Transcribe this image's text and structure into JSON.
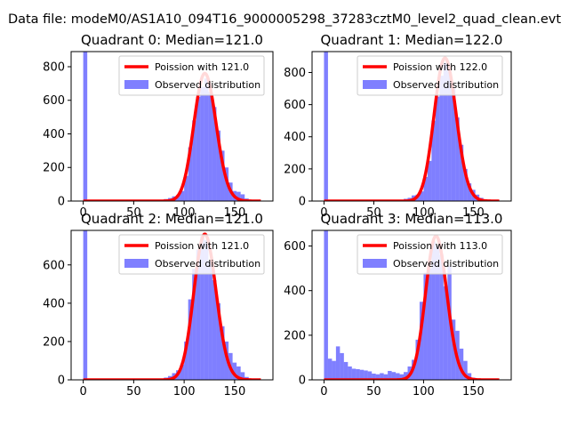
{
  "figure": {
    "suptitle": "Data file: modeM0/AS1A10_094T16_9000005298_37283cztM0_level2_quad_clean.evt",
    "colors": {
      "hist": "#0000ff",
      "hist_alpha": 0.5,
      "poisson": "#ff0000",
      "frame": "#000000"
    }
  },
  "chart_data": [
    {
      "type": "bar",
      "title": "Quadrant 0: Median=121.0",
      "median": 121.0,
      "xlim": [
        -12,
        188
      ],
      "ylim": [
        0,
        890
      ],
      "xticks": [
        0,
        50,
        100,
        150
      ],
      "yticks": [
        0,
        200,
        400,
        600,
        800
      ],
      "legend": {
        "placement": "upper-right",
        "entries": [
          "Poission with 121.0",
          "Observed distribution"
        ]
      },
      "poisson_label": "Poission with 121.0",
      "hist_label": "Observed distribution",
      "bin_width": 4,
      "hist": [
        {
          "x": 0,
          "count": 890
        },
        {
          "x": 4,
          "count": 3
        },
        {
          "x": 8,
          "count": 2
        },
        {
          "x": 76,
          "count": 5
        },
        {
          "x": 80,
          "count": 12
        },
        {
          "x": 84,
          "count": 18
        },
        {
          "x": 88,
          "count": 28
        },
        {
          "x": 92,
          "count": 35
        },
        {
          "x": 96,
          "count": 60
        },
        {
          "x": 100,
          "count": 150
        },
        {
          "x": 104,
          "count": 320
        },
        {
          "x": 108,
          "count": 480
        },
        {
          "x": 112,
          "count": 620
        },
        {
          "x": 116,
          "count": 680
        },
        {
          "x": 120,
          "count": 730
        },
        {
          "x": 124,
          "count": 650
        },
        {
          "x": 128,
          "count": 560
        },
        {
          "x": 132,
          "count": 420
        },
        {
          "x": 136,
          "count": 300
        },
        {
          "x": 140,
          "count": 200
        },
        {
          "x": 144,
          "count": 110
        },
        {
          "x": 148,
          "count": 60
        },
        {
          "x": 152,
          "count": 55
        },
        {
          "x": 156,
          "count": 40
        },
        {
          "x": 160,
          "count": 15
        },
        {
          "x": 164,
          "count": 6
        }
      ],
      "poisson_peak": 760,
      "poisson_range": [
        0,
        176
      ]
    },
    {
      "type": "bar",
      "title": "Quadrant 1: Median=122.0",
      "median": 122.0,
      "xlim": [
        -12,
        188
      ],
      "ylim": [
        0,
        930
      ],
      "xticks": [
        0,
        50,
        100,
        150
      ],
      "yticks": [
        0,
        200,
        400,
        600,
        800
      ],
      "legend": {
        "placement": "upper-right",
        "entries": [
          "Poission with 122.0",
          "Observed distribution"
        ]
      },
      "poisson_label": "Poission with 122.0",
      "hist_label": "Observed distribution",
      "bin_width": 4,
      "hist": [
        {
          "x": 0,
          "count": 930
        },
        {
          "x": 4,
          "count": 3
        },
        {
          "x": 8,
          "count": 2
        },
        {
          "x": 76,
          "count": 6
        },
        {
          "x": 80,
          "count": 14
        },
        {
          "x": 84,
          "count": 20
        },
        {
          "x": 88,
          "count": 35
        },
        {
          "x": 92,
          "count": 40
        },
        {
          "x": 96,
          "count": 60
        },
        {
          "x": 100,
          "count": 150
        },
        {
          "x": 104,
          "count": 250
        },
        {
          "x": 108,
          "count": 500
        },
        {
          "x": 112,
          "count": 650
        },
        {
          "x": 116,
          "count": 780
        },
        {
          "x": 120,
          "count": 860
        },
        {
          "x": 124,
          "count": 820
        },
        {
          "x": 128,
          "count": 700
        },
        {
          "x": 132,
          "count": 520
        },
        {
          "x": 136,
          "count": 350
        },
        {
          "x": 140,
          "count": 200
        },
        {
          "x": 144,
          "count": 110
        },
        {
          "x": 148,
          "count": 70
        },
        {
          "x": 152,
          "count": 40
        },
        {
          "x": 156,
          "count": 20
        },
        {
          "x": 160,
          "count": 8
        },
        {
          "x": 164,
          "count": 4
        }
      ],
      "poisson_peak": 890,
      "poisson_range": [
        0,
        176
      ]
    },
    {
      "type": "bar",
      "title": "Quadrant 2: Median=121.0",
      "median": 121.0,
      "xlim": [
        -12,
        188
      ],
      "ylim": [
        0,
        780
      ],
      "xticks": [
        0,
        50,
        100,
        150
      ],
      "yticks": [
        0,
        200,
        400,
        600
      ],
      "legend": {
        "placement": "upper-right",
        "entries": [
          "Poission with 121.0",
          "Observed distribution"
        ]
      },
      "poisson_label": "Poission with 121.0",
      "hist_label": "Observed distribution",
      "bin_width": 4,
      "hist": [
        {
          "x": 0,
          "count": 780
        },
        {
          "x": 4,
          "count": 3
        },
        {
          "x": 8,
          "count": 2
        },
        {
          "x": 76,
          "count": 6
        },
        {
          "x": 80,
          "count": 12
        },
        {
          "x": 84,
          "count": 20
        },
        {
          "x": 88,
          "count": 35
        },
        {
          "x": 92,
          "count": 50
        },
        {
          "x": 96,
          "count": 80
        },
        {
          "x": 100,
          "count": 200
        },
        {
          "x": 104,
          "count": 420
        },
        {
          "x": 108,
          "count": 580
        },
        {
          "x": 112,
          "count": 680
        },
        {
          "x": 116,
          "count": 750
        },
        {
          "x": 120,
          "count": 730
        },
        {
          "x": 124,
          "count": 620
        },
        {
          "x": 128,
          "count": 520
        },
        {
          "x": 132,
          "count": 400
        },
        {
          "x": 136,
          "count": 280
        },
        {
          "x": 140,
          "count": 200
        },
        {
          "x": 144,
          "count": 140
        },
        {
          "x": 148,
          "count": 90
        },
        {
          "x": 152,
          "count": 70
        },
        {
          "x": 156,
          "count": 40
        },
        {
          "x": 160,
          "count": 15
        },
        {
          "x": 164,
          "count": 5
        }
      ],
      "poisson_peak": 760,
      "poisson_range": [
        0,
        176
      ]
    },
    {
      "type": "bar",
      "title": "Quadrant 3: Median=113.0",
      "median": 113.0,
      "xlim": [
        -12,
        188
      ],
      "ylim": [
        0,
        670
      ],
      "xticks": [
        0,
        50,
        100,
        150
      ],
      "yticks": [
        0,
        200,
        400,
        600
      ],
      "legend": {
        "placement": "upper-right",
        "entries": [
          "Poission with 113.0",
          "Observed distribution"
        ]
      },
      "poisson_label": "Poission with 113.0",
      "hist_label": "Observed distribution",
      "bin_width": 4,
      "hist": [
        {
          "x": 0,
          "count": 670
        },
        {
          "x": 4,
          "count": 95
        },
        {
          "x": 8,
          "count": 85
        },
        {
          "x": 12,
          "count": 150
        },
        {
          "x": 16,
          "count": 120
        },
        {
          "x": 20,
          "count": 80
        },
        {
          "x": 24,
          "count": 60
        },
        {
          "x": 28,
          "count": 50
        },
        {
          "x": 32,
          "count": 48
        },
        {
          "x": 36,
          "count": 45
        },
        {
          "x": 40,
          "count": 42
        },
        {
          "x": 44,
          "count": 38
        },
        {
          "x": 48,
          "count": 28
        },
        {
          "x": 52,
          "count": 25
        },
        {
          "x": 56,
          "count": 30
        },
        {
          "x": 60,
          "count": 25
        },
        {
          "x": 64,
          "count": 40
        },
        {
          "x": 68,
          "count": 35
        },
        {
          "x": 72,
          "count": 30
        },
        {
          "x": 76,
          "count": 25
        },
        {
          "x": 80,
          "count": 35
        },
        {
          "x": 84,
          "count": 60
        },
        {
          "x": 88,
          "count": 90
        },
        {
          "x": 92,
          "count": 180
        },
        {
          "x": 96,
          "count": 350
        },
        {
          "x": 100,
          "count": 480
        },
        {
          "x": 104,
          "count": 500
        },
        {
          "x": 108,
          "count": 620
        },
        {
          "x": 112,
          "count": 600
        },
        {
          "x": 116,
          "count": 560
        },
        {
          "x": 120,
          "count": 420
        },
        {
          "x": 124,
          "count": 510
        },
        {
          "x": 128,
          "count": 270
        },
        {
          "x": 132,
          "count": 220
        },
        {
          "x": 136,
          "count": 140
        },
        {
          "x": 140,
          "count": 85
        },
        {
          "x": 144,
          "count": 30
        },
        {
          "x": 148,
          "count": 10
        }
      ],
      "poisson_peak": 645,
      "poisson_range": [
        0,
        176
      ]
    }
  ]
}
